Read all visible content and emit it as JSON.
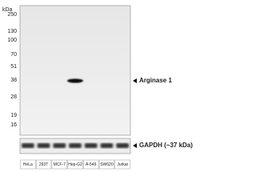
{
  "blot": {
    "unit_label": "kDa",
    "markers": [
      "250",
      "130",
      "100",
      "70",
      "51",
      "38",
      "28",
      "19",
      "16"
    ],
    "target_label": "Arginase 1",
    "loading_control_label": "GAPDH (~37 kDa)",
    "lanes": [
      "HeLa",
      "293T",
      "MCF-7",
      "Hep-G2",
      "A-549",
      "SW620",
      "Jurkat"
    ]
  }
}
